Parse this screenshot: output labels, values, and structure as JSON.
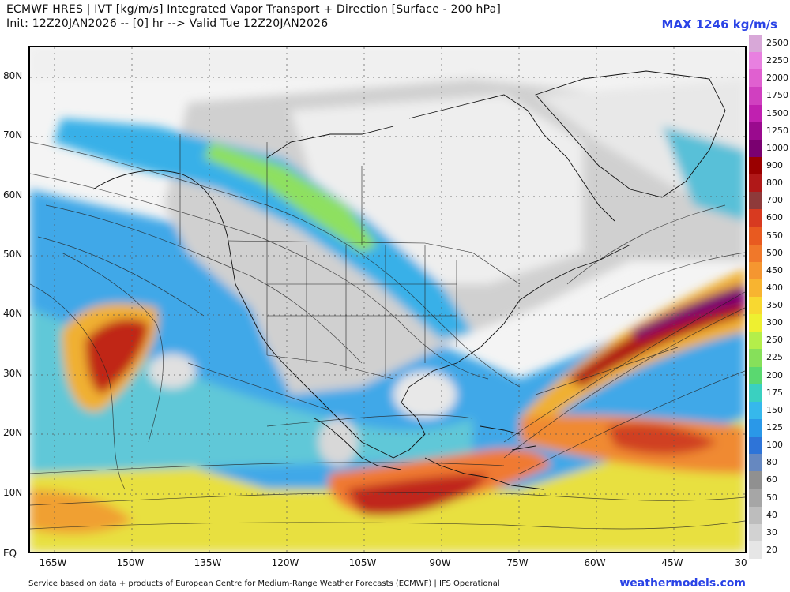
{
  "header": {
    "line1": "ECMWF HRES | IVT [kg/m/s] Integrated Vapor Transport + Direction [Surface - 200 hPa]",
    "line2": "Init: 12Z20JAN2026 -- [0] hr --> Valid Tue 12Z20JAN2026",
    "max_label": "MAX 1246 kg/m/s"
  },
  "axes": {
    "lat_labels": [
      "80N",
      "70N",
      "60N",
      "50N",
      "40N",
      "30N",
      "20N",
      "10N",
      "EQ"
    ],
    "lon_labels": [
      "165W",
      "150W",
      "135W",
      "120W",
      "105W",
      "90W",
      "75W",
      "60W",
      "45W",
      "30"
    ]
  },
  "colorbar": {
    "labels": [
      "2500",
      "2250",
      "2000",
      "1750",
      "1500",
      "1250",
      "1000",
      "900",
      "800",
      "700",
      "600",
      "550",
      "500",
      "450",
      "400",
      "350",
      "300",
      "250",
      "225",
      "200",
      "175",
      "150",
      "125",
      "100",
      "80",
      "60",
      "50",
      "40",
      "30",
      "20"
    ],
    "colors": [
      "#d8a8d8",
      "#e880e0",
      "#e060d0",
      "#d040c0",
      "#c020b0",
      "#9a0a8e",
      "#7a0070",
      "#9a0000",
      "#b01818",
      "#8e3a3a",
      "#d83a20",
      "#e85a20",
      "#f0782a",
      "#f59630",
      "#f8b430",
      "#f8d830",
      "#eef030",
      "#b4ee4a",
      "#86e05a",
      "#5ad870",
      "#3ad0c0",
      "#36b8ec",
      "#2a98e8",
      "#2e74d8",
      "#6688c0",
      "#909090",
      "#a6a6a6",
      "#bdbdbd",
      "#d2d2d2",
      "#e6e6e6"
    ]
  },
  "footer": {
    "credit": "Service based on data + products of European Centre for Medium-Range Weather Forecasts (ECMWF) | IFS Operational",
    "brand": "weathermodels.com"
  }
}
